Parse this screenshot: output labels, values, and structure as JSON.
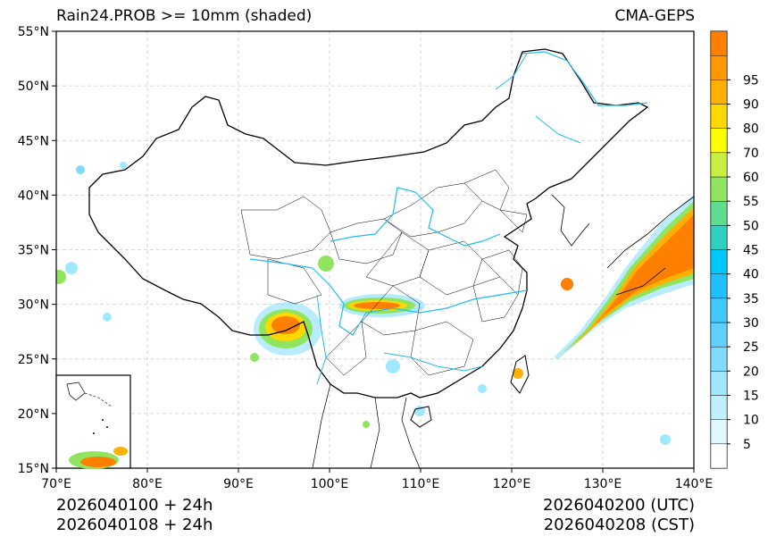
{
  "title_left": "Rain24.PROB >= 10mm (shaded)",
  "title_right": "CMA-GEPS",
  "footer": {
    "init_utc": "2026040100 + 24h",
    "init_cst": "2026040108 + 24h",
    "valid_utc": "2026040200 (UTC)",
    "valid_cst": "2026040208 (CST)"
  },
  "map": {
    "lon_range": [
      70,
      140
    ],
    "lat_range": [
      15,
      55
    ],
    "lon_ticks": [
      "70°E",
      "80°E",
      "90°E",
      "100°E",
      "110°E",
      "120°E",
      "130°E",
      "140°E"
    ],
    "lat_ticks": [
      "15°N",
      "20°N",
      "25°N",
      "30°N",
      "35°N",
      "40°N",
      "45°N",
      "50°N",
      "55°N"
    ],
    "grid": true
  },
  "colorbar": {
    "labels": [
      "5",
      "10",
      "15",
      "20",
      "25",
      "30",
      "35",
      "40",
      "45",
      "50",
      "55",
      "60",
      "70",
      "80",
      "90",
      "95"
    ],
    "colors": [
      "#ffffff",
      "#e0f8ff",
      "#c0f0ff",
      "#a0e8ff",
      "#80dcff",
      "#60d0ff",
      "#40c8ff",
      "#20c0ff",
      "#00c8ff",
      "#30d0c0",
      "#60dc90",
      "#90e460",
      "#c8f040",
      "#ffff00",
      "#ffd800",
      "#ffb000",
      "#ff9800",
      "#ff8000"
    ]
  },
  "colors": {
    "rivers": "#22bbee",
    "borders": "#000000",
    "gridlines": "#cccccc"
  }
}
